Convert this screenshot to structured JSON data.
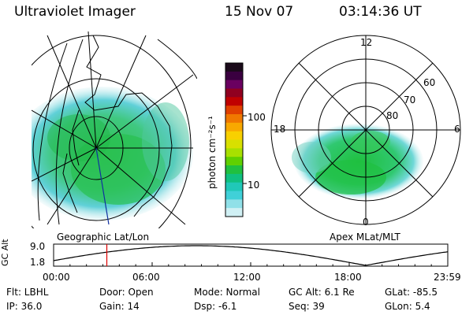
{
  "header": {
    "instrument": "Ultraviolet Imager",
    "date": "15 Nov 07",
    "time": "03:14:36 UT"
  },
  "left_panel": {
    "caption": "Geographic Lat/Lon"
  },
  "right_panel": {
    "caption": "Apex MLat/MLT",
    "mlt_labels": [
      "12",
      "18",
      "6",
      "0"
    ],
    "lat_labels": [
      "60",
      "70",
      "80"
    ]
  },
  "colorbar": {
    "unit_label": "photon cm⁻²s⁻¹",
    "ticks": [
      "100",
      "10"
    ],
    "colors": [
      "#1a0a1a",
      "#3a0040",
      "#6a0060",
      "#900020",
      "#c00000",
      "#e04000",
      "#f07800",
      "#f8a800",
      "#f8d000",
      "#d8e000",
      "#a8e000",
      "#60d000",
      "#20c040",
      "#10c080",
      "#20c8b8",
      "#40d0d8",
      "#90e0e8",
      "#d0f0f4"
    ]
  },
  "altitude_plot": {
    "ylabel": "GC Alt",
    "ymax_label": "9.0",
    "ymin_label": "1.8",
    "time_labels": [
      "00:00",
      "06:00",
      "12:00",
      "18:00",
      "23:59"
    ],
    "marker_time_hours": 3.24,
    "marker_color": "#dd0000"
  },
  "info": {
    "flt": "Flt: LBHL",
    "ip": "IP: 36.0",
    "door": "Door: Open",
    "gain": "Gain: 14",
    "mode": "Mode: Normal",
    "dsp": "Dsp:    -6.1",
    "gcalt": "GC Alt: 6.1 Re",
    "seq": "Seq: 39",
    "glat": "GLat:  -85.5",
    "glon": "GLon:    5.4"
  }
}
